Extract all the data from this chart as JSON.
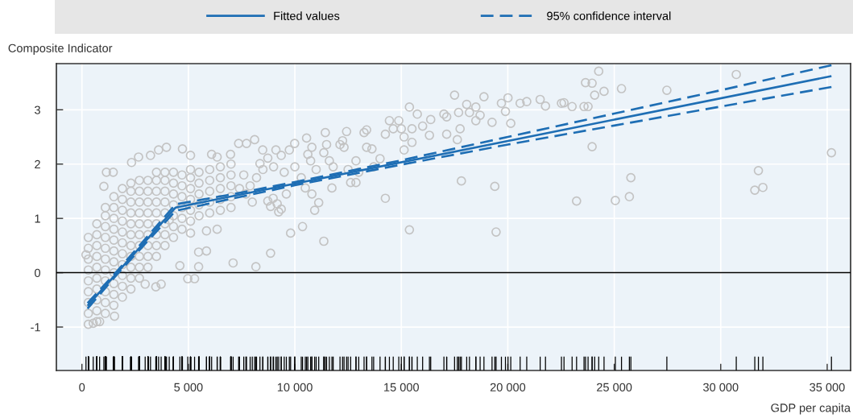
{
  "chart_data": {
    "type": "scatter",
    "xlabel": "GDP per capita",
    "ylabel": "Composite Indicator",
    "xlim": [
      -1200,
      36100
    ],
    "ylim": [
      -1.8,
      3.85
    ],
    "xticks": [
      0,
      {
        "value": 5000,
        "label": "5 000"
      },
      {
        "value": 10000,
        "label": "10 000"
      },
      {
        "value": 15000,
        "label": "15 000"
      },
      {
        "value": 20000,
        "label": "20 000"
      },
      {
        "value": 25000,
        "label": "25 000"
      },
      {
        "value": 30000,
        "label": "30 000"
      },
      {
        "value": 35000,
        "label": "35 000"
      }
    ],
    "yticks": [
      -1,
      0,
      1,
      2,
      3
    ],
    "grid": true,
    "legend": "top",
    "ref_lines": [
      {
        "axis": "y",
        "value": 0,
        "color": "#000000"
      }
    ],
    "series": [
      {
        "color": "#c3c3c3",
        "marker": "circle",
        "x": [
          300,
          300,
          300,
          300,
          300,
          300,
          300,
          300,
          300,
          700,
          700,
          700,
          700,
          700,
          700,
          700,
          700,
          700,
          700,
          1100,
          1100,
          1100,
          1100,
          1100,
          1100,
          1100,
          1100,
          1100,
          1100,
          1100,
          1500,
          1500,
          1500,
          1500,
          1500,
          1500,
          1500,
          1500,
          1500,
          1500,
          1500,
          1900,
          1900,
          1900,
          1900,
          1900,
          1900,
          1900,
          1900,
          1900,
          1900,
          1900,
          2300,
          2300,
          2300,
          2300,
          2300,
          2300,
          2300,
          2300,
          2300,
          2300,
          2300,
          2700,
          2700,
          2700,
          2700,
          2700,
          2700,
          2700,
          2700,
          2700,
          2700,
          3100,
          3100,
          3100,
          3100,
          3100,
          3100,
          3100,
          3100,
          3100,
          3500,
          3500,
          3500,
          3500,
          3500,
          3500,
          3500,
          3500,
          3500,
          3900,
          3900,
          3900,
          3900,
          3900,
          3900,
          3900,
          3900,
          4300,
          4300,
          4300,
          4300,
          4300,
          4300,
          4300,
          4700,
          4700,
          4700,
          4700,
          4700,
          4700,
          5100,
          5100,
          5100,
          5100,
          5100,
          5100,
          5500,
          5500,
          5500,
          5500,
          5500,
          6000,
          6000,
          6000,
          6000,
          6000,
          6500,
          6500,
          6500,
          6500,
          6500,
          7000,
          7000,
          7000,
          7000,
          7000,
          190,
          1030,
          1150,
          1470,
          530,
          830,
          2330,
          2660,
          3220,
          3600,
          3970,
          4720,
          5100,
          6090,
          6350,
          6980,
          7360,
          8110,
          5850,
          6350,
          5100,
          5480,
          5850,
          4600,
          5480,
          4970,
          5290,
          7100,
          8170,
          8860,
          3470,
          3720,
          2970,
          1530,
          4100,
          17500,
          18880,
          15380,
          15750,
          20010,
          19700,
          19890,
          20580,
          20890,
          21520,
          21770,
          22520,
          18070,
          18500,
          18200,
          18700,
          18500,
          17000,
          17130,
          17690,
          19260,
          20140,
          16380,
          16320,
          16000,
          15500,
          15000,
          15130,
          14440,
          14880,
          14620,
          14250,
          15500,
          15130,
          17130,
          17760,
          17630,
          13370,
          13250,
          13370,
          13620,
          12430,
          12240,
          12120,
          12310,
          11430,
          11490,
          11360,
          11620,
          10550,
          10800,
          10610,
          10740,
          9990,
          9740,
          9360,
          9110,
          8490,
          8730,
          8360,
          7730,
          12870,
          12620,
          12870,
          11740,
          14250,
          11120,
          10930,
          10360,
          9800,
          11360,
          15380,
          17820,
          19390,
          19450,
          8980,
          9360,
          9170,
          10490,
          8730,
          8860,
          9240,
          7600,
          7900,
          8200,
          8500,
          9000,
          9500,
          10000,
          10300,
          11000,
          11800,
          12500,
          13000,
          13700,
          14000,
          7700,
          8000,
          7400,
          9600,
          10800,
          24270,
          23650,
          23960,
          24520,
          24080,
          25340,
          27470,
          30730,
          22640,
          23020,
          23580,
          23770,
          23960,
          25780,
          25710,
          25050,
          23230,
          31770,
          31600,
          31980,
          35200
        ],
        "values": [
          -0.95,
          -0.75,
          -0.55,
          -0.35,
          -0.15,
          0.05,
          0.25,
          0.45,
          0.65,
          -0.9,
          -0.7,
          -0.5,
          -0.3,
          -0.1,
          0.1,
          0.3,
          0.5,
          0.7,
          0.9,
          -0.75,
          -0.55,
          -0.35,
          -0.15,
          0.05,
          0.25,
          0.45,
          0.65,
          0.85,
          1.05,
          1.2,
          -0.6,
          -0.4,
          -0.2,
          0,
          0.2,
          0.4,
          0.6,
          0.8,
          1.0,
          1.2,
          1.4,
          -0.45,
          -0.25,
          -0.05,
          0.15,
          0.35,
          0.55,
          0.75,
          0.95,
          1.15,
          1.35,
          1.55,
          -0.3,
          -0.1,
          0.1,
          0.3,
          0.5,
          0.7,
          0.9,
          1.1,
          1.3,
          1.5,
          1.65,
          -0.1,
          0.1,
          0.3,
          0.5,
          0.7,
          0.9,
          1.1,
          1.3,
          1.5,
          1.7,
          0.1,
          0.3,
          0.5,
          0.7,
          0.9,
          1.1,
          1.3,
          1.5,
          1.7,
          0.3,
          0.5,
          0.7,
          0.9,
          1.1,
          1.3,
          1.5,
          1.7,
          1.85,
          0.5,
          0.7,
          0.9,
          1.1,
          1.3,
          1.5,
          1.7,
          1.85,
          0.65,
          0.85,
          1.05,
          1.25,
          1.45,
          1.65,
          1.85,
          0.8,
          1.0,
          1.2,
          1.4,
          1.6,
          1.8,
          0.95,
          1.15,
          1.35,
          1.55,
          1.75,
          1.9,
          1.05,
          1.25,
          1.45,
          1.65,
          1.85,
          1.1,
          1.3,
          1.5,
          1.7,
          1.9,
          1.15,
          1.35,
          1.55,
          1.75,
          1.95,
          1.2,
          1.4,
          1.6,
          1.8,
          2.0,
          0.33,
          1.59,
          1.85,
          1.85,
          -0.93,
          -0.9,
          2.03,
          2.13,
          2.16,
          2.26,
          2.31,
          2.28,
          2.16,
          2.18,
          2.13,
          2.18,
          2.38,
          2.45,
          0.77,
          0.8,
          0.73,
          0.38,
          0.4,
          0.13,
          0.11,
          -0.11,
          -0.11,
          0.18,
          0.11,
          0.36,
          -0.26,
          -0.21,
          -0.21,
          -0.8,
          0.97,
          3.27,
          3.24,
          3.05,
          2.92,
          3.22,
          3.12,
          2.97,
          3.12,
          3.15,
          3.19,
          3.07,
          3.12,
          3.1,
          3.05,
          2.95,
          2.9,
          2.8,
          2.92,
          2.87,
          2.95,
          2.77,
          2.75,
          2.82,
          2.53,
          2.7,
          2.65,
          2.65,
          2.5,
          2.8,
          2.8,
          2.65,
          2.55,
          2.4,
          2.26,
          2.55,
          2.65,
          2.45,
          2.63,
          2.58,
          2.31,
          2.28,
          2.6,
          2.43,
          2.36,
          2.31,
          2.58,
          2.36,
          2.21,
          2.06,
          2.48,
          2.31,
          2.18,
          2.06,
          2.38,
          2.26,
          2.16,
          2.26,
          2.26,
          2.11,
          2.01,
          2.38,
          2.06,
          1.66,
          1.66,
          1.56,
          1.37,
          1.29,
          1.15,
          0.85,
          0.73,
          0.58,
          0.79,
          1.69,
          1.59,
          0.75,
          1.37,
          1.17,
          1.27,
          1.56,
          1.32,
          1.22,
          1.12,
          1.8,
          1.6,
          1.75,
          1.9,
          1.95,
          1.85,
          1.95,
          1.75,
          1.9,
          1.95,
          1.9,
          1.85,
          1.95,
          2.1,
          1.45,
          1.3,
          1.55,
          1.45,
          1.45,
          3.71,
          3.5,
          3.49,
          3.34,
          3.27,
          3.39,
          3.36,
          3.65,
          3.13,
          3.06,
          3.06,
          3.06,
          2.32,
          1.75,
          1.4,
          1.33,
          1.32,
          1.88,
          1.52,
          1.57,
          2.21
        ]
      },
      {
        "type": "line",
        "name": "Fitted values",
        "color": "#1e6eb4",
        "line_style": "solid",
        "x": [
          263,
          4400,
          35200
        ],
        "values": [
          -0.61,
          1.2,
          3.62
        ]
      },
      {
        "type": "line",
        "name": "95% confidence interval",
        "color": "#1e6eb4",
        "line_style": "dashed",
        "x": [
          263,
          1650,
          4400,
          7000,
          10000,
          15000,
          20000,
          25000,
          30000,
          35200
        ],
        "values": [
          -0.56,
          0.03,
          1.26,
          1.44,
          1.67,
          2.07,
          2.5,
          2.93,
          3.36,
          3.82
        ]
      },
      {
        "type": "line",
        "color": "#1e6eb4",
        "line_style": "dashed",
        "x": [
          263,
          1650,
          4400,
          7000,
          10000,
          15000,
          20000,
          25000,
          30000,
          35200
        ],
        "values": [
          -0.66,
          -0.03,
          1.14,
          1.36,
          1.61,
          1.99,
          2.36,
          2.71,
          3.06,
          3.42
        ]
      }
    ]
  }
}
